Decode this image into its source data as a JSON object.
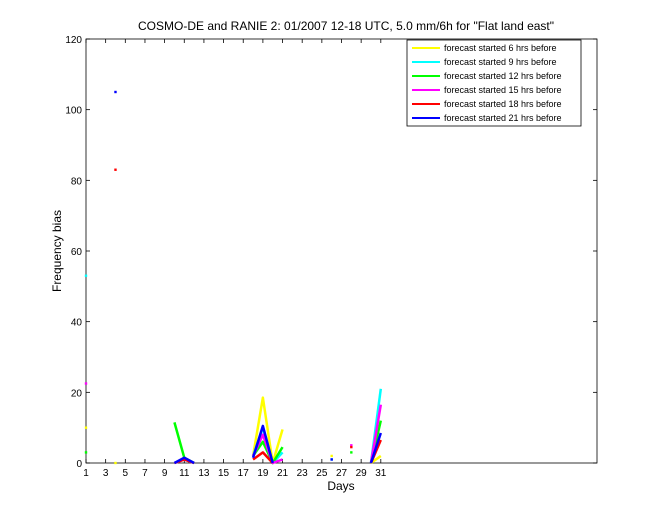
{
  "chart_data": {
    "type": "line",
    "title": "COSMO-DE and RANIE 2: 01/2007 12-18 UTC, 5.0 mm/6h for \"Flat land east\"",
    "xlabel": "Days",
    "ylabel": "Frequency bias",
    "xlim": [
      1,
      53
    ],
    "ylim": [
      0,
      120
    ],
    "x_ticks": [
      1,
      3,
      5,
      7,
      9,
      11,
      13,
      15,
      17,
      19,
      21,
      23,
      25,
      27,
      29,
      31
    ],
    "y_ticks": [
      0,
      20,
      40,
      60,
      80,
      100,
      120
    ],
    "grid": false,
    "legend_position": "top-right",
    "series": [
      {
        "name": "forecast started 6 hrs before",
        "color": "#ffff00",
        "lines": [
          [
            [
              10,
              0
            ],
            [
              11,
              1
            ],
            [
              12,
              0
            ]
          ],
          [
            [
              18,
              2
            ],
            [
              19,
              18.5
            ],
            [
              20,
              0
            ],
            [
              21,
              9.5
            ]
          ],
          [
            [
              30,
              0
            ],
            [
              31,
              2
            ]
          ]
        ],
        "points": [
          [
            1,
            10
          ],
          [
            4,
            0
          ],
          [
            26,
            2
          ]
        ]
      },
      {
        "name": "forecast started 9 hrs before",
        "color": "#00ffff",
        "lines": [
          [
            [
              10,
              0
            ],
            [
              11,
              1
            ],
            [
              12,
              0
            ]
          ],
          [
            [
              18,
              2
            ],
            [
              19,
              10
            ],
            [
              20,
              0
            ],
            [
              21,
              3
            ]
          ],
          [
            [
              30,
              0
            ],
            [
              31,
              21
            ]
          ]
        ],
        "points": [
          [
            1,
            53
          ],
          [
            26,
            1
          ]
        ]
      },
      {
        "name": "forecast started 12 hrs before",
        "color": "#00ff00",
        "lines": [
          [
            [
              10,
              11.5
            ],
            [
              11,
              1.5
            ],
            [
              12,
              0
            ]
          ],
          [
            [
              18,
              2
            ],
            [
              19,
              6
            ],
            [
              20,
              0
            ],
            [
              21,
              4.5
            ]
          ],
          [
            [
              30,
              0
            ],
            [
              31,
              12
            ]
          ]
        ],
        "points": [
          [
            1,
            3
          ],
          [
            28,
            3
          ]
        ]
      },
      {
        "name": "forecast started 15 hrs before",
        "color": "#ff00ff",
        "lines": [
          [
            [
              10,
              0
            ],
            [
              11,
              1
            ],
            [
              12,
              0
            ]
          ],
          [
            [
              18,
              2
            ],
            [
              19,
              8
            ],
            [
              20,
              0
            ],
            [
              21,
              1
            ]
          ],
          [
            [
              30,
              0
            ],
            [
              31,
              16.5
            ]
          ]
        ],
        "points": [
          [
            1,
            22.5
          ],
          [
            28,
            5
          ]
        ]
      },
      {
        "name": "forecast started 18 hrs before",
        "color": "#ff0000",
        "lines": [
          [
            [
              10,
              0
            ],
            [
              11,
              1
            ],
            [
              12,
              0
            ]
          ],
          [
            [
              18,
              1
            ],
            [
              19,
              3
            ],
            [
              20,
              0
            ]
          ],
          [
            [
              30,
              0
            ],
            [
              31,
              6.5
            ]
          ]
        ],
        "points": [
          [
            4,
            83
          ],
          [
            28,
            4.5
          ]
        ]
      },
      {
        "name": "forecast started 21 hrs before",
        "color": "#0000ff",
        "lines": [
          [
            [
              10,
              0
            ],
            [
              11,
              1.5
            ],
            [
              12,
              0
            ]
          ],
          [
            [
              18,
              1.5
            ],
            [
              19,
              10.5
            ],
            [
              20,
              0
            ]
          ],
          [
            [
              30,
              0
            ],
            [
              31,
              8.5
            ]
          ]
        ],
        "points": [
          [
            4,
            105
          ],
          [
            26,
            1
          ]
        ]
      }
    ]
  }
}
